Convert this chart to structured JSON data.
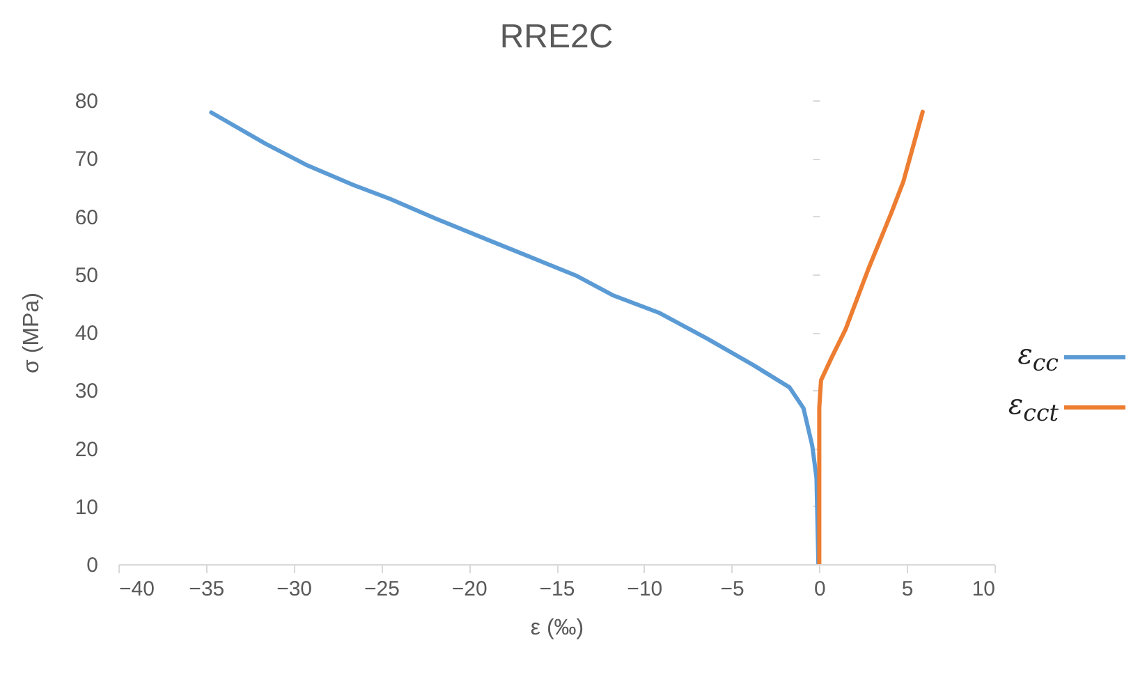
{
  "chart_data": {
    "type": "line",
    "title": "RRE2C",
    "xlabel": "ε (‰)",
    "ylabel": "σ (MPa)",
    "xlim": [
      -40,
      10
    ],
    "xticks": [
      -40,
      -35,
      -30,
      -25,
      -20,
      -15,
      -10,
      -5,
      0,
      5,
      10
    ],
    "ylim": [
      0,
      80
    ],
    "yticks": [
      0,
      10,
      20,
      30,
      40,
      50,
      60,
      70,
      80
    ],
    "grid": false,
    "legend": "right",
    "marker": "none",
    "line_style": "solid",
    "series": [
      {
        "name": "ε$_{cc}$",
        "color": "#5b9bd5",
        "x": [
          -34.7,
          -31.6,
          -29.3,
          -26.6,
          -24.5,
          -21.9,
          -18.4,
          -13.9,
          -11.8,
          -9.1,
          -6.4,
          -3.8,
          -1.7,
          -0.9,
          -0.4,
          -0.16,
          -0.05
        ],
        "values": [
          77.9,
          72.5,
          68.9,
          65.4,
          63,
          59.6,
          55.3,
          49.8,
          46.4,
          43.3,
          38.9,
          34.4,
          30.5,
          26.9,
          20.4,
          14.9,
          0
        ]
      },
      {
        "name": "ε$_{cct}$",
        "color": "#ed7d31",
        "x": [
          0,
          0,
          0.1,
          0.7,
          1.5,
          2.8,
          4.1,
          4.8,
          5.9
        ],
        "values": [
          0,
          27,
          31.7,
          35.6,
          40.5,
          50.9,
          60.5,
          66,
          78
        ]
      }
    ]
  }
}
